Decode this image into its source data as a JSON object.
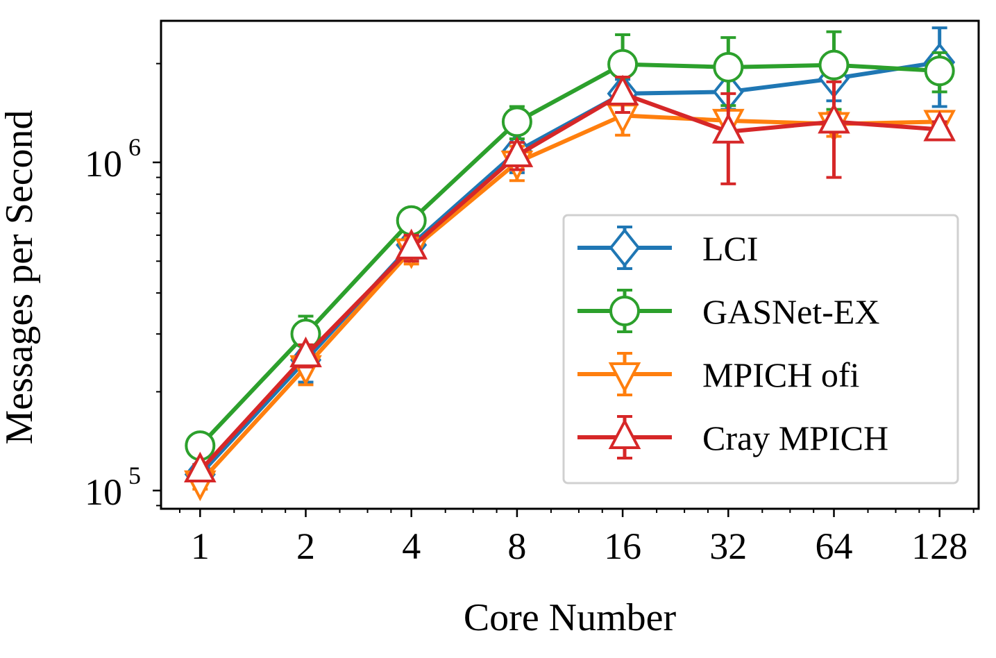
{
  "chart_data": {
    "type": "line",
    "title": "",
    "xlabel": "Core Number",
    "ylabel": "Messages per Second",
    "x_scale": "log2",
    "y_scale": "log10",
    "categories": [
      "1",
      "2",
      "4",
      "8",
      "16",
      "32",
      "64",
      "128"
    ],
    "x": [
      1,
      2,
      4,
      8,
      16,
      32,
      64,
      128
    ],
    "ylim": [
      88000,
      2700000
    ],
    "y_ticks": [
      {
        "value": 100000,
        "base": "10",
        "exp": "5"
      },
      {
        "value": 1000000,
        "base": "10",
        "exp": "6"
      }
    ],
    "grid": false,
    "legend_position": "lower-right",
    "series": [
      {
        "name": "LCI",
        "color": "#1f77b4",
        "marker": "diamond",
        "values": [
          112000,
          250000,
          560000,
          1080000,
          1620000,
          1640000,
          1800000,
          2020000
        ],
        "err_low": [
          104000,
          214000,
          510000,
          930000,
          1450000,
          1450000,
          1540000,
          1480000
        ],
        "err_high": [
          120000,
          286000,
          610000,
          1230000,
          1790000,
          1830000,
          2060000,
          2570000
        ]
      },
      {
        "name": "GASNet-EX",
        "color": "#2ca02c",
        "marker": "circle",
        "values": [
          137000,
          300000,
          665000,
          1330000,
          1990000,
          1950000,
          1980000,
          1900000
        ],
        "err_low": [
          128000,
          262000,
          610000,
          1180000,
          1520000,
          1490000,
          1450000,
          1640000
        ],
        "err_high": [
          146000,
          340000,
          720000,
          1480000,
          2450000,
          2400000,
          2500000,
          2160000
        ]
      },
      {
        "name": "MPICH ofi",
        "color": "#ff7f0e",
        "marker": "triangle-down",
        "values": [
          106000,
          238000,
          540000,
          1000000,
          1390000,
          1340000,
          1310000,
          1330000
        ],
        "err_low": [
          101000,
          210000,
          490000,
          880000,
          1210000,
          1200000,
          1200000,
          1240000
        ],
        "err_high": [
          112000,
          262000,
          590000,
          1120000,
          1500000,
          1440000,
          1420000,
          1420000
        ]
      },
      {
        "name": "Cray MPICH",
        "color": "#d62728",
        "marker": "triangle-up",
        "values": [
          115000,
          258000,
          550000,
          1050000,
          1620000,
          1240000,
          1330000,
          1260000
        ],
        "err_low": [
          110000,
          238000,
          500000,
          950000,
          1420000,
          860000,
          900000,
          1190000
        ],
        "err_high": [
          120000,
          278000,
          600000,
          1150000,
          1820000,
          1620000,
          1760000,
          1330000
        ]
      }
    ]
  }
}
